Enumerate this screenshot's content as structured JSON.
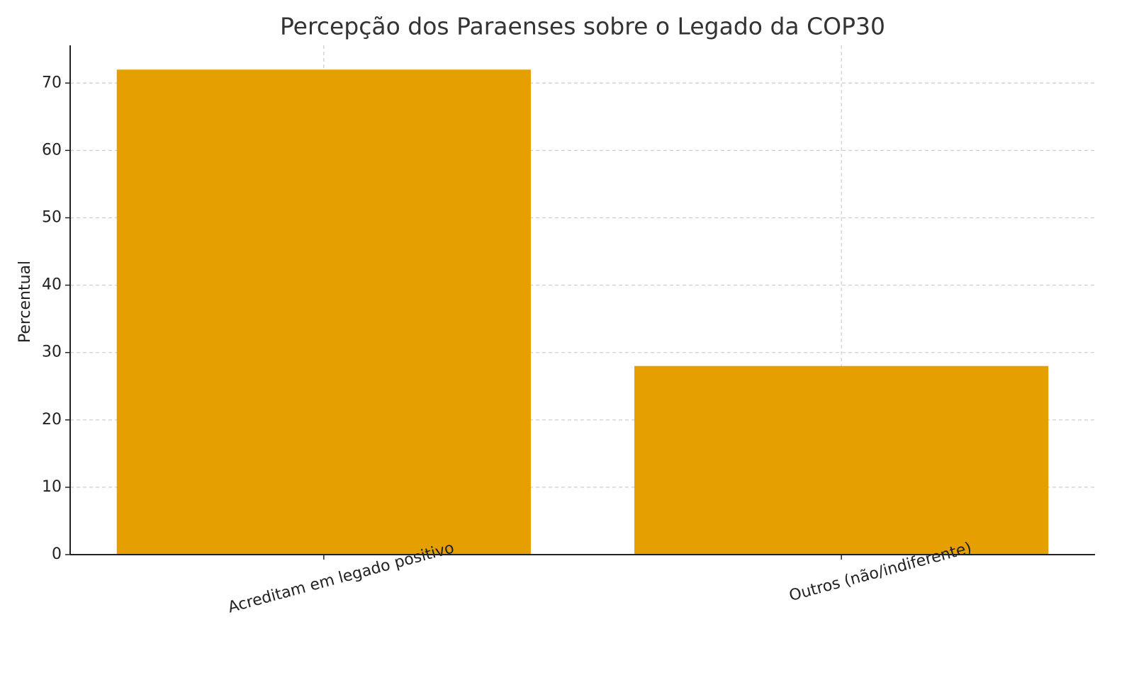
{
  "chart_data": {
    "type": "bar",
    "title": "Percepção dos Paraenses sobre o Legado da COP30",
    "y_label": "Percentual",
    "categories": [
      "Acreditam em legado positivo",
      "Outros (não/indiferente)"
    ],
    "values": [
      72,
      28
    ],
    "color": "#e5a000",
    "ylim": [
      0,
      75.6
    ],
    "yticks": [
      0,
      10,
      20,
      30,
      40,
      50,
      60,
      70
    ],
    "grid": true
  }
}
